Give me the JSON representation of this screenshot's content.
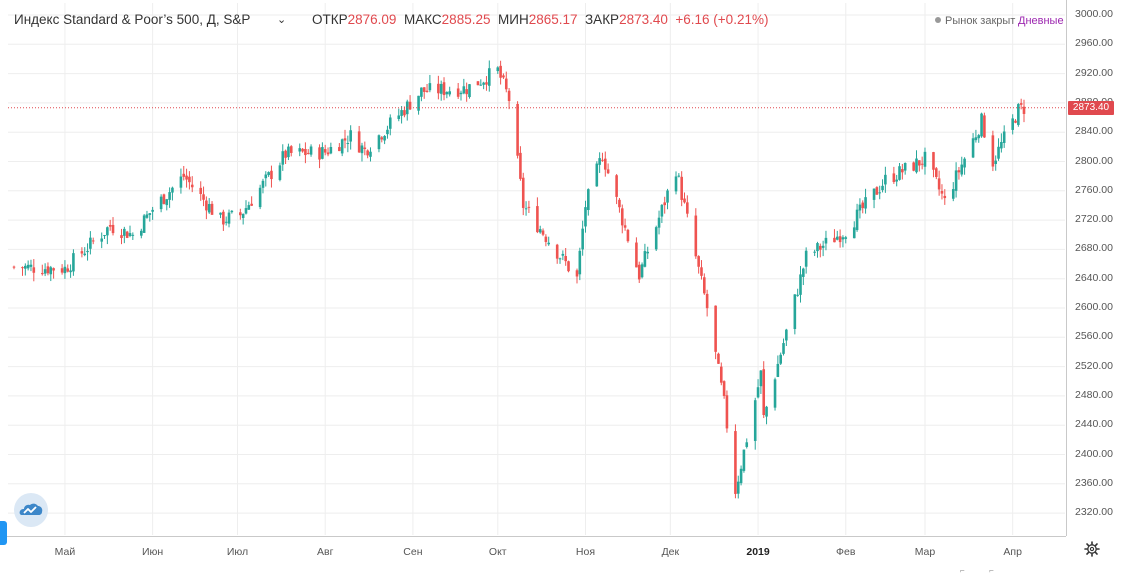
{
  "header": {
    "title": "Индекс Standard & Poor’s 500, Д, S&P",
    "open_label": "ОТКР",
    "open": "2876.09",
    "high_label": "МАКС",
    "high": "2885.25",
    "low_label": "МИН",
    "low": "2865.17",
    "close_label": "ЗАКР",
    "close": "2873.40",
    "change": "+6.16 (+0.21%)",
    "market_status": "Рынок закрыт",
    "interval": "Дневные"
  },
  "price_axis": {
    "ticks": [
      "3000.00",
      "2960.00",
      "2920.00",
      "2880.00",
      "2840.00",
      "2800.00",
      "2760.00",
      "2720.00",
      "2680.00",
      "2640.00",
      "2600.00",
      "2560.00",
      "2520.00",
      "2480.00",
      "2440.00",
      "2400.00",
      "2360.00",
      "2320.00"
    ],
    "last_price": "2873.40"
  },
  "time_axis": {
    "labels": [
      "Май",
      "Июн",
      "Июл",
      "Авг",
      "Сен",
      "Окт",
      "Ноя",
      "Дек",
      "2019",
      "Фев",
      "Мар",
      "Апр"
    ]
  },
  "colors": {
    "up": "#26a69a",
    "down": "#ef5350",
    "last_price_line": "#e0494e",
    "grid": "#eeeeee"
  },
  "icons": {
    "settings": "gear-icon",
    "logo": "tradingview-cloud-icon",
    "dropdown": "chevron-down-icon"
  },
  "chart_data": {
    "type": "candlestick",
    "y_range": [
      2300,
      3005
    ],
    "last_price": 2873.4,
    "x_axis": "date (daily), Apr 2018 – Apr 2019",
    "approx_monthly_closes": [
      {
        "x": "2018-04-13",
        "y": 2656
      },
      {
        "x": "2018-05-01",
        "y": 2654
      },
      {
        "x": "2018-06-01",
        "y": 2735
      },
      {
        "x": "2018-07-02",
        "y": 2727
      },
      {
        "x": "2018-08-01",
        "y": 2813
      },
      {
        "x": "2018-09-04",
        "y": 2896
      },
      {
        "x": "2018-10-01",
        "y": 2924
      },
      {
        "x": "2018-11-01",
        "y": 2740
      },
      {
        "x": "2018-12-03",
        "y": 2790
      },
      {
        "x": "2018-12-24",
        "y": 2351
      },
      {
        "x": "2019-01-02",
        "y": 2510
      },
      {
        "x": "2019-02-01",
        "y": 2706
      },
      {
        "x": "2019-03-01",
        "y": 2803
      },
      {
        "x": "2019-04-05",
        "y": 2873
      }
    ]
  }
}
